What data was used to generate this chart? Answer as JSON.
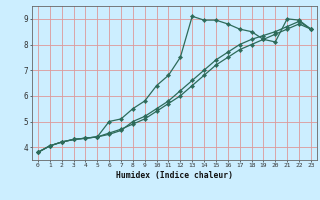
{
  "title": "",
  "xlabel": "Humidex (Indice chaleur)",
  "bg_color": "#cceeff",
  "grid_color": "#dd9999",
  "line_color": "#2d6b5a",
  "xlim": [
    -0.5,
    23.5
  ],
  "ylim": [
    3.5,
    9.5
  ],
  "xticks": [
    0,
    1,
    2,
    3,
    4,
    5,
    6,
    7,
    8,
    9,
    10,
    11,
    12,
    13,
    14,
    15,
    16,
    17,
    18,
    19,
    20,
    21,
    22,
    23
  ],
  "yticks": [
    4,
    5,
    6,
    7,
    8,
    9
  ],
  "line1_x": [
    0,
    1,
    2,
    3,
    4,
    5,
    6,
    7,
    8,
    9,
    10,
    11,
    12,
    13,
    14,
    15,
    16,
    17,
    18,
    19,
    20,
    21,
    22,
    23
  ],
  "line1_y": [
    3.8,
    4.05,
    4.2,
    4.3,
    4.35,
    4.4,
    5.0,
    5.1,
    5.5,
    5.8,
    6.4,
    6.8,
    7.5,
    9.1,
    8.95,
    8.95,
    8.8,
    8.6,
    8.5,
    8.2,
    8.1,
    9.0,
    8.95,
    8.6
  ],
  "line2_x": [
    0,
    1,
    2,
    3,
    4,
    5,
    6,
    7,
    8,
    9,
    10,
    11,
    12,
    13,
    14,
    15,
    16,
    17,
    18,
    19,
    20,
    21,
    22,
    23
  ],
  "line2_y": [
    3.8,
    4.05,
    4.2,
    4.3,
    4.35,
    4.4,
    4.5,
    4.65,
    5.0,
    5.2,
    5.5,
    5.8,
    6.2,
    6.6,
    7.0,
    7.4,
    7.7,
    8.0,
    8.2,
    8.35,
    8.5,
    8.7,
    8.9,
    8.6
  ],
  "line3_x": [
    0,
    1,
    2,
    3,
    4,
    5,
    6,
    7,
    8,
    9,
    10,
    11,
    12,
    13,
    14,
    15,
    16,
    17,
    18,
    19,
    20,
    21,
    22,
    23
  ],
  "line3_y": [
    3.8,
    4.05,
    4.2,
    4.3,
    4.35,
    4.4,
    4.55,
    4.7,
    4.9,
    5.1,
    5.4,
    5.7,
    6.0,
    6.4,
    6.8,
    7.2,
    7.5,
    7.8,
    8.0,
    8.2,
    8.4,
    8.6,
    8.8,
    8.6
  ]
}
